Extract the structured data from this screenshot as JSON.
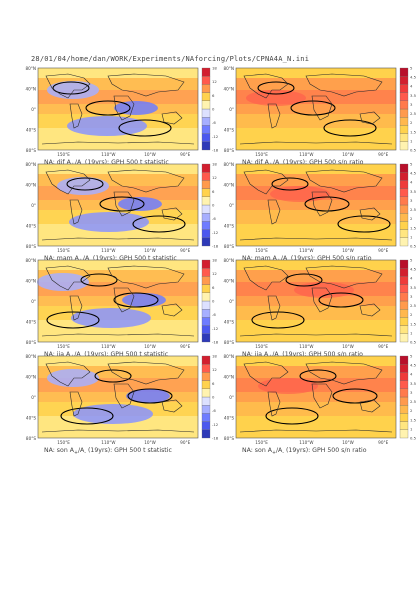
{
  "header": "28/01/04/home/dan/WORK/Experiments/NAforcing/Plots/CPNA4A_N.ini",
  "colors": {
    "land_contour": "#2a2a2a",
    "sig_contour": "#000000",
    "warm_scale": [
      "#fff3b0",
      "#ffe680",
      "#ffd24d",
      "#ffb84d",
      "#ff9a4d",
      "#ff7a4d",
      "#ff5a4d",
      "#ef3b3b",
      "#d21f2f",
      "#b8102b"
    ],
    "cold_scale": [
      "#dde1ff",
      "#c3c9ff",
      "#a7afff",
      "#8a93ff",
      "#6f7cff",
      "#5d6aff",
      "#4c58ef",
      "#3d48d8",
      "#2e3ab8",
      "#232c9a"
    ]
  },
  "panels": [
    {
      "id": "djf-t",
      "caption": {
        "pre": "NA: djf A",
        "s1": "+",
        "mid": "/A",
        "s2": "-",
        "post": " (19yrs): GPH 500 t statistic"
      },
      "chart_data": {
        "type": "heatmap",
        "kind": "t statistic",
        "season": "djf",
        "y_ticks": [
          "80°N",
          "40°N",
          "0°",
          "40°S",
          "80°S"
        ],
        "x_ticks": [
          "150°E",
          "110°W",
          "10°W",
          "90°E"
        ],
        "colorbar": [
          "-18",
          "-12",
          "-6",
          "0",
          "6",
          "12",
          "18"
        ],
        "color_scheme": "diverging"
      }
    },
    {
      "id": "djf-sn",
      "caption": {
        "pre": "NA: djf A",
        "s1": "+",
        "mid": "/A",
        "s2": "-",
        "post": " (19yrs): GPH 500 s/n ratio"
      },
      "chart_data": {
        "type": "heatmap",
        "kind": "s/n ratio",
        "season": "djf",
        "y_ticks": [
          "80°N",
          "40°N",
          "0°",
          "40°S",
          "80°S"
        ],
        "x_ticks": [
          "150°E",
          "110°W",
          "10°W",
          "90°E"
        ],
        "colorbar": [
          "0.5",
          "1",
          "1.5",
          "2",
          "2.5",
          "3",
          "3.5",
          "4",
          "4.5",
          "5"
        ],
        "color_scheme": "sequential"
      }
    },
    {
      "id": "mam-t",
      "caption": {
        "pre": "NA: mam A",
        "s1": "+",
        "mid": "/A",
        "s2": "-",
        "post": " (19yrs): GPH 500 t statistic"
      },
      "chart_data": {
        "type": "heatmap",
        "kind": "t statistic",
        "season": "mam",
        "y_ticks": [
          "80°N",
          "40°N",
          "0°",
          "40°S",
          "80°S"
        ],
        "x_ticks": [
          "150°E",
          "110°W",
          "10°W",
          "90°E"
        ],
        "colorbar": [
          "-18",
          "-12",
          "-6",
          "0",
          "6",
          "12",
          "18"
        ],
        "color_scheme": "diverging"
      }
    },
    {
      "id": "mam-sn",
      "caption": {
        "pre": "NA: mam A",
        "s1": "+",
        "mid": "/A",
        "s2": "-",
        "post": " (19yrs): GPH 500 s/n ratio"
      },
      "chart_data": {
        "type": "heatmap",
        "kind": "s/n ratio",
        "season": "mam",
        "y_ticks": [
          "80°N",
          "40°N",
          "0°",
          "40°S",
          "80°S"
        ],
        "x_ticks": [
          "150°E",
          "110°W",
          "10°W",
          "90°E"
        ],
        "colorbar": [
          "0.5",
          "1",
          "1.5",
          "2",
          "2.5",
          "3",
          "3.5",
          "4",
          "4.5",
          "5"
        ],
        "color_scheme": "sequential"
      }
    },
    {
      "id": "jja-t",
      "caption": {
        "pre": "NA: jja A",
        "s1": "+",
        "mid": "/A",
        "s2": "-",
        "post": " (19yrs): GPH 500 t statistic"
      },
      "chart_data": {
        "type": "heatmap",
        "kind": "t statistic",
        "season": "jja",
        "y_ticks": [
          "80°N",
          "40°N",
          "0°",
          "40°S",
          "80°S"
        ],
        "x_ticks": [
          "150°E",
          "110°W",
          "10°W",
          "90°E"
        ],
        "colorbar": [
          "-18",
          "-12",
          "-6",
          "0",
          "6",
          "12",
          "18"
        ],
        "color_scheme": "diverging"
      }
    },
    {
      "id": "jja-sn",
      "caption": {
        "pre": "NA: jja A",
        "s1": "+",
        "mid": "/A",
        "s2": "-",
        "post": " (19yrs): GPH 500 s/n ratio"
      },
      "chart_data": {
        "type": "heatmap",
        "kind": "s/n ratio",
        "season": "jja",
        "y_ticks": [
          "80°N",
          "40°N",
          "0°",
          "40°S",
          "80°S"
        ],
        "x_ticks": [
          "150°E",
          "110°W",
          "10°W",
          "90°E"
        ],
        "colorbar": [
          "0.5",
          "1",
          "1.5",
          "2",
          "2.5",
          "3",
          "3.5",
          "4",
          "4.5",
          "5"
        ],
        "color_scheme": "sequential"
      }
    },
    {
      "id": "son-t",
      "caption": {
        "pre": "NA: son A",
        "s1": "+",
        "mid": "/A",
        "s2": "-",
        "post": " (19yrs): GPH 500 t statistic"
      },
      "chart_data": {
        "type": "heatmap",
        "kind": "t statistic",
        "season": "son",
        "y_ticks": [
          "80°N",
          "40°N",
          "0°",
          "40°S",
          "80°S"
        ],
        "x_ticks": [
          "150°E",
          "110°W",
          "10°W",
          "90°E"
        ],
        "colorbar": [
          "-18",
          "-12",
          "-6",
          "0",
          "6",
          "12",
          "18"
        ],
        "color_scheme": "diverging"
      }
    },
    {
      "id": "son-sn",
      "caption": {
        "pre": "NA: son A",
        "s1": "+",
        "mid": "/A",
        "s2": "-",
        "post": " (19yrs): GPH 500 s/n ratio"
      },
      "chart_data": {
        "type": "heatmap",
        "kind": "s/n ratio",
        "season": "son",
        "y_ticks": [
          "80°N",
          "40°N",
          "0°",
          "40°S",
          "80°S"
        ],
        "x_ticks": [
          "150°E",
          "110°W",
          "10°W",
          "90°E"
        ],
        "colorbar": [
          "0.5",
          "1",
          "1.5",
          "2",
          "2.5",
          "3",
          "3.5",
          "4",
          "4.5",
          "5"
        ],
        "color_scheme": "sequential"
      }
    }
  ]
}
